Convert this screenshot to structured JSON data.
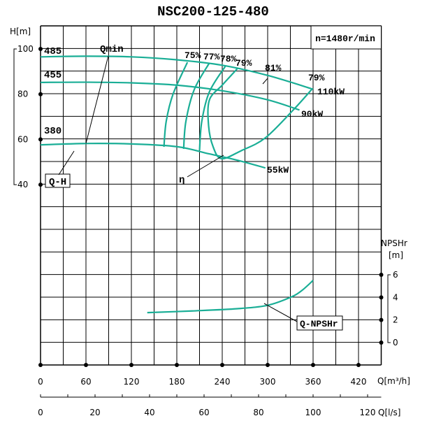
{
  "chart_data": {
    "type": "line",
    "title": "NSC200-125-480",
    "speed_label": "n=1480r/min",
    "color": "#1aae96",
    "x_axis": {
      "label": "Q[m³/h]",
      "range": [
        0,
        450
      ],
      "ticks": [
        0,
        60,
        120,
        180,
        240,
        300,
        360,
        420
      ],
      "grid_step": 30
    },
    "x2_axis": {
      "label": "Q[l/s]",
      "range": [
        0,
        125
      ],
      "ticks": [
        0,
        20,
        40,
        60,
        80,
        100,
        120
      ],
      "minor_step": 10
    },
    "y_axis": {
      "label": "H[m]",
      "range": [
        40,
        100
      ],
      "ticks": [
        100,
        80,
        60,
        40
      ],
      "grid_step": 10
    },
    "y2_axis": {
      "label_top": "NPSHr",
      "label_unit": "[m]",
      "range": [
        0,
        6
      ],
      "ticks": [
        6,
        4,
        2,
        0
      ]
    },
    "grid": true,
    "head_curves": [
      {
        "name": "485",
        "power_label": "110kW",
        "points": [
          [
            0,
            96.5
          ],
          [
            60,
            96.8
          ],
          [
            120,
            96.5
          ],
          [
            180,
            95.2
          ],
          [
            240,
            92.8
          ],
          [
            300,
            88.3
          ],
          [
            360,
            82.2
          ]
        ]
      },
      {
        "name": "455",
        "power_label": "90kW",
        "points": [
          [
            0,
            85.2
          ],
          [
            60,
            85.3
          ],
          [
            120,
            85
          ],
          [
            180,
            84
          ],
          [
            240,
            81.5
          ],
          [
            300,
            77.5
          ],
          [
            342,
            73
          ]
        ]
      },
      {
        "name": "380",
        "power_label": "55kW",
        "points": [
          [
            0,
            57.6
          ],
          [
            60,
            58.2
          ],
          [
            120,
            58
          ],
          [
            180,
            56.8
          ],
          [
            223,
            53.6
          ],
          [
            260,
            50.8
          ],
          [
            297,
            47.4
          ]
        ]
      }
    ],
    "efficiency_curves": [
      {
        "name": "75%",
        "points": [
          [
            163,
            56.7
          ],
          [
            166,
            68
          ],
          [
            175,
            80
          ],
          [
            194,
            94.1
          ]
        ]
      },
      {
        "name": "77%",
        "points": [
          [
            189,
            55.8
          ],
          [
            192,
            68
          ],
          [
            203,
            82
          ],
          [
            223,
            93.8
          ]
        ]
      },
      {
        "name": "78%",
        "points": [
          [
            210,
            55.2
          ],
          [
            213,
            68
          ],
          [
            223,
            81
          ],
          [
            244,
            92.3
          ]
        ]
      },
      {
        "name": "79%",
        "points": [
          [
            260,
            91.3
          ],
          [
            240,
            84
          ],
          [
            223,
            77.4
          ],
          [
            222,
            66
          ],
          [
            228,
            56.7
          ],
          [
            239,
            51.5
          ],
          [
            265,
            55
          ],
          [
            297,
            60.7
          ],
          [
            334,
            73.1
          ],
          [
            359,
            82.4
          ]
        ]
      }
    ],
    "efficiency_labels": [
      "81%",
      "79%"
    ],
    "npshr_curve": {
      "name": "Q-NPSHr",
      "points": [
        [
          141,
          2.65
        ],
        [
          200,
          2.8
        ],
        [
          260,
          3.0
        ],
        [
          300,
          3.3
        ],
        [
          330,
          4.0
        ],
        [
          345,
          4.6
        ],
        [
          360,
          5.5
        ]
      ]
    },
    "annotations": {
      "qh": "Q-H",
      "qmin": "Qmin",
      "eta": "η"
    }
  }
}
